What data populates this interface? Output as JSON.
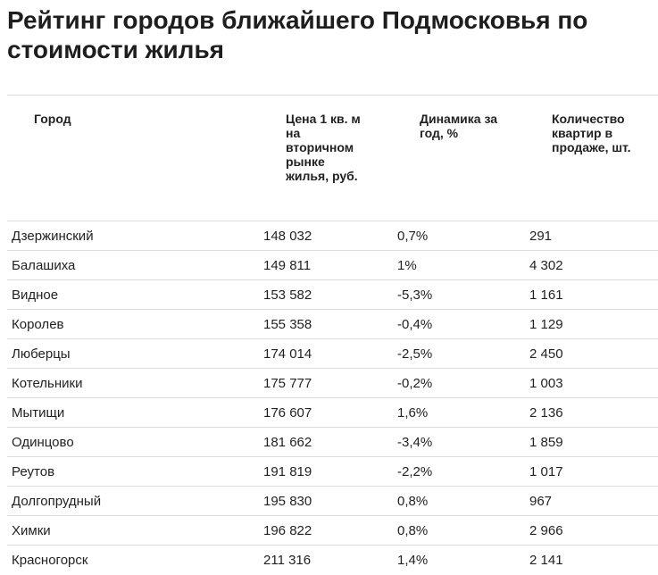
{
  "header": {
    "title": "Рейтинг городов ближайшего Подмосковья по стоимости жилья"
  },
  "table": {
    "columns": [
      "Город",
      "Цена 1 кв. м на вторичном рынке жилья, руб.",
      "Динамика за год, %",
      "Количество квартир в продаже, шт."
    ],
    "rows": [
      [
        "Дзержинский",
        "148 032",
        "0,7%",
        "291"
      ],
      [
        "Балашиха",
        "149 811",
        "1%",
        "4 302"
      ],
      [
        "Видное",
        "153 582",
        "-5,3%",
        "1 161"
      ],
      [
        "Королев",
        "155 358",
        "-0,4%",
        "1 129"
      ],
      [
        "Люберцы",
        "174 014",
        "-2,5%",
        "2 450"
      ],
      [
        "Котельники",
        "175 777",
        "-0,2%",
        "1 003"
      ],
      [
        "Мытищи",
        "176 607",
        "1,6%",
        "2 136"
      ],
      [
        "Одинцово",
        "181 662",
        "-3,4%",
        "1 859"
      ],
      [
        "Реутов",
        "191 819",
        "-2,2%",
        "1 017"
      ],
      [
        "Долгопрудный",
        "195 830",
        "0,8%",
        "967"
      ],
      [
        "Химки",
        "196 822",
        "0,8%",
        "2 966"
      ],
      [
        "Красногорск",
        "211 316",
        "1,4%",
        "2 141"
      ]
    ]
  }
}
